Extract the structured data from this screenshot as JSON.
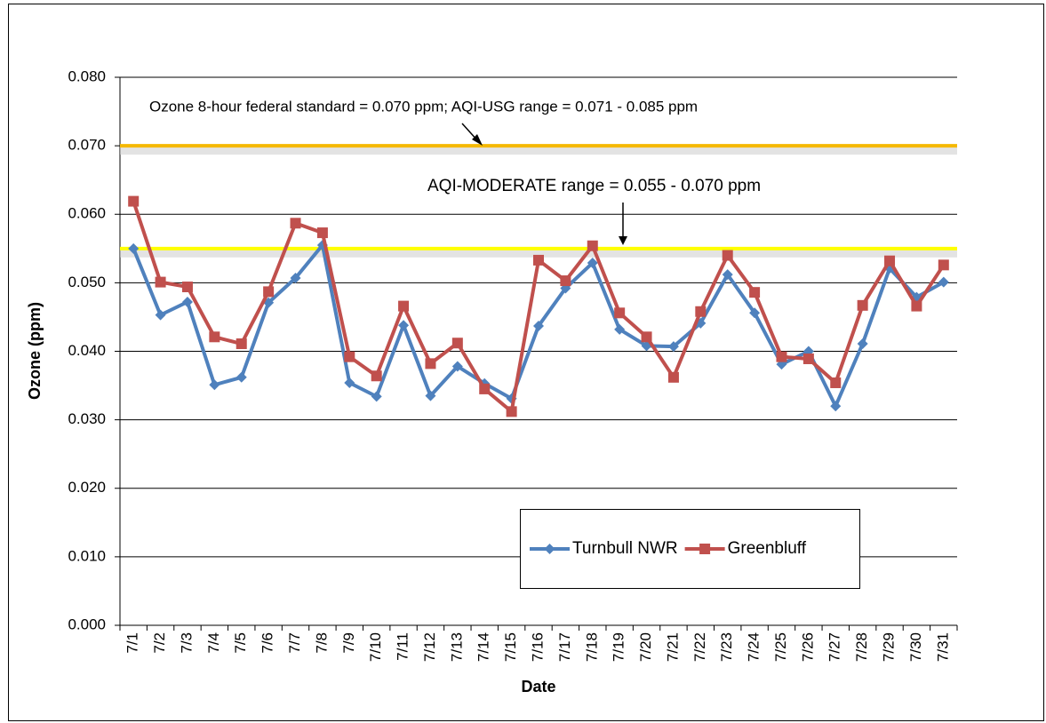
{
  "chart_data": {
    "type": "line",
    "y_label": "Ozone (ppm)",
    "x_label": "Date",
    "categories": [
      "7/1",
      "7/2",
      "7/3",
      "7/4",
      "7/5",
      "7/6",
      "7/7",
      "7/8",
      "7/9",
      "7/10",
      "7/11",
      "7/12",
      "7/13",
      "7/14",
      "7/15",
      "7/16",
      "7/17",
      "7/18",
      "7/19",
      "7/20",
      "7/21",
      "7/22",
      "7/23",
      "7/24",
      "7/25",
      "7/26",
      "7/27",
      "7/28",
      "7/29",
      "7/30",
      "7/31"
    ],
    "series": [
      {
        "name": "Turnbull NWR",
        "color": "#4f81bd",
        "marker": "diamond",
        "values": [
          0.055,
          0.0453,
          0.0472,
          0.0351,
          0.0362,
          0.0471,
          0.0507,
          0.0555,
          0.0354,
          0.0334,
          0.0438,
          0.0335,
          0.0378,
          0.0353,
          0.0331,
          0.0437,
          0.0492,
          0.0529,
          0.0432,
          0.0408,
          0.0407,
          0.0441,
          0.0512,
          0.0456,
          0.0381,
          0.04,
          0.032,
          0.0411,
          0.0521,
          0.0479,
          0.0501
        ]
      },
      {
        "name": "Greenbluff",
        "color": "#c0504d",
        "marker": "square",
        "values": [
          0.0619,
          0.0501,
          0.0494,
          0.0421,
          0.0411,
          0.0487,
          0.0587,
          0.0573,
          0.0392,
          0.0364,
          0.0466,
          0.0382,
          0.0412,
          0.0345,
          0.0312,
          0.0533,
          0.0503,
          0.0554,
          0.0456,
          0.0421,
          0.0362,
          0.0458,
          0.054,
          0.0486,
          0.0392,
          0.0389,
          0.0354,
          0.0467,
          0.0532,
          0.0466,
          0.0526
        ]
      }
    ],
    "ylim": [
      0,
      0.08
    ],
    "yticks": [
      {
        "value": 0,
        "label": "0.000"
      },
      {
        "value": 0.01,
        "label": "0.010"
      },
      {
        "value": 0.02,
        "label": "0.020"
      },
      {
        "value": 0.03,
        "label": "0.030"
      },
      {
        "value": 0.04,
        "label": "0.040"
      },
      {
        "value": 0.05,
        "label": "0.050"
      },
      {
        "value": 0.06,
        "label": "0.060"
      },
      {
        "value": 0.07,
        "label": "0.070"
      },
      {
        "value": 0.08,
        "label": "0.080"
      }
    ],
    "grid": true,
    "legend": "bottom",
    "reference_lines": [
      {
        "value": 0.07,
        "color": "#f5b800"
      },
      {
        "value": 0.055,
        "color": "#ffff00"
      }
    ],
    "annotations": [
      "Ozone 8-hour federal standard = 0.070 ppm;  AQI-USG  range = 0.071 - 0.085 ppm",
      "AQI-MODERATE range = 0.055 - 0.070 ppm"
    ]
  }
}
